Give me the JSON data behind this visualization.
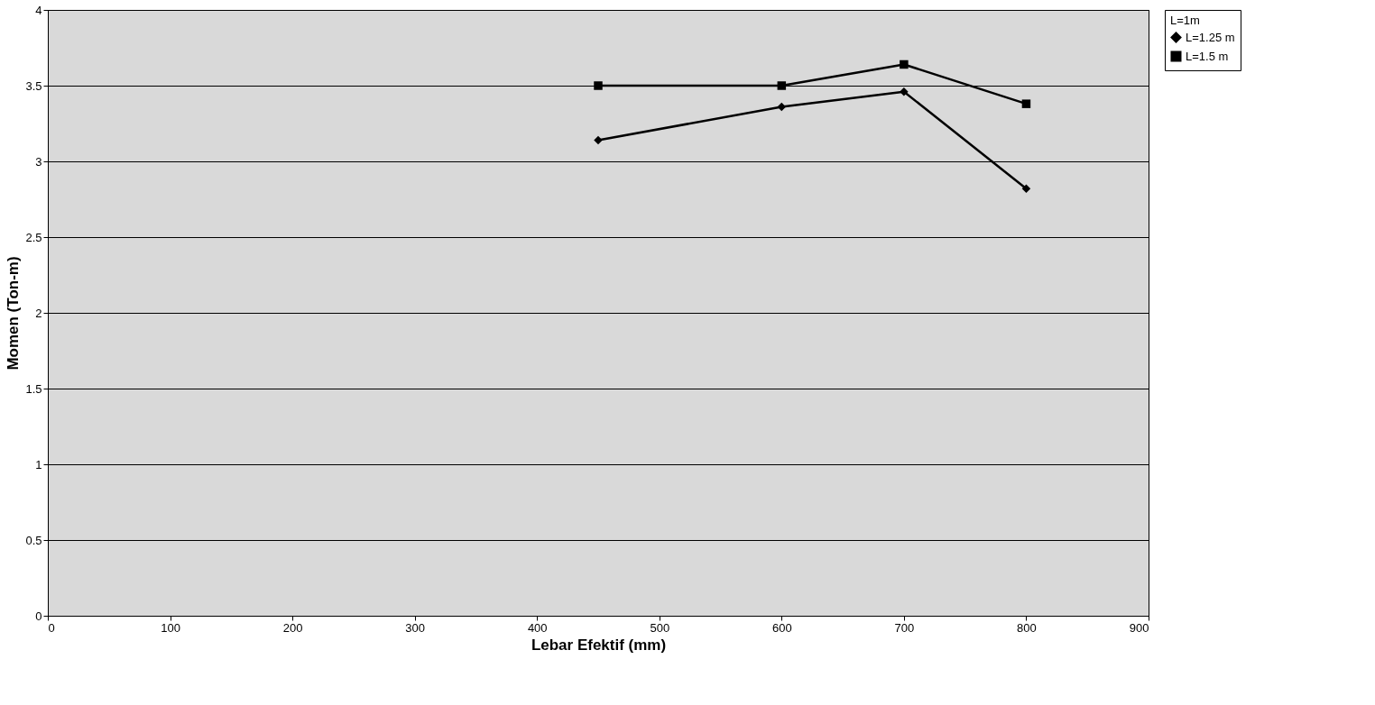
{
  "chart_data": {
    "type": "line",
    "xlabel": "Lebar Efektif (mm)",
    "ylabel": "Momen (Ton-m)",
    "legend_title": "L=1m",
    "x": [
      450,
      600,
      700,
      800
    ],
    "series": [
      {
        "name": "L=1.25 m",
        "color": "#000000",
        "marker": "diamond",
        "values": [
          3.14,
          3.36,
          3.46,
          2.82
        ]
      },
      {
        "name": "L=1.5 m",
        "color": "#000000",
        "marker": "square",
        "values": [
          3.5,
          3.5,
          3.64,
          3.38
        ]
      }
    ],
    "xlim": [
      0,
      900
    ],
    "xticks": [
      0,
      100,
      200,
      300,
      400,
      500,
      600,
      700,
      800,
      900
    ],
    "ylim": [
      0,
      4
    ],
    "yticks": [
      0,
      0.5,
      1,
      1.5,
      2,
      2.5,
      3,
      3.5,
      4
    ],
    "grid": "y",
    "legend": "right",
    "line_style": "solid"
  }
}
